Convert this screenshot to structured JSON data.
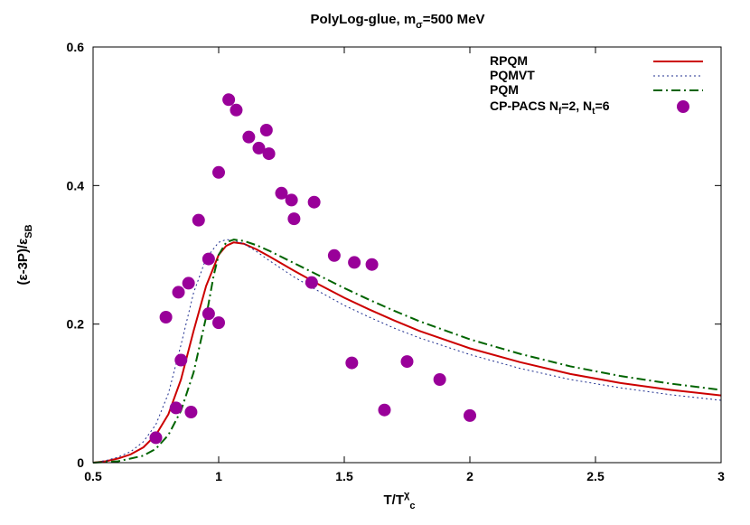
{
  "chart_data": {
    "type": "line",
    "title_main": "PolyLog-glue, m",
    "title_sub": "σ",
    "title_tail": "=500 MeV",
    "xlabel_main": "T/T",
    "xlabel_sup": "χ",
    "xlabel_sub": "c",
    "ylabel_main": "(ε-3P)/ε",
    "ylabel_sub": "SB",
    "xlim": [
      0.5,
      3
    ],
    "ylim": [
      0,
      0.6
    ],
    "x_ticks": [
      0.5,
      1,
      1.5,
      2,
      2.5,
      3
    ],
    "x_tick_labels": [
      "0.5",
      "1",
      "1.5",
      "2",
      "2.5",
      "3"
    ],
    "y_ticks": [
      0,
      0.2,
      0.4,
      0.6
    ],
    "y_tick_labels": [
      "0",
      "0.2",
      "0.4",
      "0.6"
    ],
    "grid": false,
    "legend_position": "top-right",
    "series": [
      {
        "name": "RPQM",
        "style": "solid",
        "color": "#cc0000",
        "x": [
          0.5,
          0.55,
          0.6,
          0.65,
          0.7,
          0.75,
          0.8,
          0.85,
          0.9,
          0.95,
          1.0,
          1.03,
          1.06,
          1.1,
          1.15,
          1.2,
          1.3,
          1.4,
          1.5,
          1.6,
          1.7,
          1.8,
          2.0,
          2.2,
          2.4,
          2.6,
          2.8,
          3.0
        ],
        "y": [
          0.0,
          0.002,
          0.006,
          0.012,
          0.022,
          0.04,
          0.07,
          0.12,
          0.19,
          0.255,
          0.3,
          0.313,
          0.318,
          0.316,
          0.308,
          0.298,
          0.277,
          0.257,
          0.238,
          0.221,
          0.205,
          0.19,
          0.165,
          0.145,
          0.128,
          0.115,
          0.105,
          0.097
        ]
      },
      {
        "name": "PQMVT",
        "style": "dotted",
        "color": "#1f2f8f",
        "x": [
          0.5,
          0.55,
          0.6,
          0.65,
          0.7,
          0.75,
          0.8,
          0.85,
          0.9,
          0.95,
          1.0,
          1.03,
          1.06,
          1.1,
          1.15,
          1.2,
          1.3,
          1.4,
          1.5,
          1.6,
          1.7,
          1.8,
          2.0,
          2.2,
          2.4,
          2.6,
          2.8,
          3.0
        ],
        "y": [
          0.0,
          0.003,
          0.008,
          0.016,
          0.03,
          0.055,
          0.1,
          0.17,
          0.245,
          0.295,
          0.318,
          0.322,
          0.321,
          0.316,
          0.305,
          0.292,
          0.268,
          0.247,
          0.227,
          0.21,
          0.194,
          0.18,
          0.156,
          0.136,
          0.12,
          0.108,
          0.098,
          0.09
        ]
      },
      {
        "name": "PQM",
        "style": "dashdot",
        "color": "#006400",
        "x": [
          0.5,
          0.6,
          0.7,
          0.75,
          0.8,
          0.85,
          0.9,
          0.95,
          0.98,
          1.0,
          1.03,
          1.06,
          1.1,
          1.15,
          1.2,
          1.3,
          1.4,
          1.5,
          1.6,
          1.7,
          1.8,
          2.0,
          2.2,
          2.4,
          2.6,
          2.8,
          3.0
        ],
        "y": [
          0.0,
          0.002,
          0.01,
          0.02,
          0.04,
          0.075,
          0.13,
          0.21,
          0.27,
          0.3,
          0.318,
          0.322,
          0.32,
          0.314,
          0.306,
          0.288,
          0.27,
          0.252,
          0.235,
          0.219,
          0.204,
          0.178,
          0.157,
          0.139,
          0.125,
          0.114,
          0.105
        ]
      },
      {
        "name": "CP-PACS N",
        "name_sub_f": "f",
        "name_mid": "=2, N",
        "name_sub_t": "t",
        "name_tail": "=6",
        "style": "points",
        "color": "#990099",
        "x": [
          0.75,
          0.79,
          0.83,
          0.84,
          0.85,
          0.88,
          0.89,
          0.92,
          0.96,
          0.96,
          1.0,
          1.0,
          1.04,
          1.07,
          1.12,
          1.16,
          1.19,
          1.2,
          1.25,
          1.29,
          1.3,
          1.37,
          1.38,
          1.46,
          1.53,
          1.54,
          1.61,
          1.66,
          1.75,
          1.88,
          2.0
        ],
        "y": [
          0.036,
          0.21,
          0.079,
          0.246,
          0.148,
          0.259,
          0.073,
          0.35,
          0.294,
          0.215,
          0.419,
          0.202,
          0.524,
          0.509,
          0.47,
          0.454,
          0.48,
          0.446,
          0.389,
          0.379,
          0.352,
          0.26,
          0.376,
          0.299,
          0.144,
          0.289,
          0.286,
          0.076,
          0.146,
          0.12,
          0.068
        ]
      }
    ]
  }
}
